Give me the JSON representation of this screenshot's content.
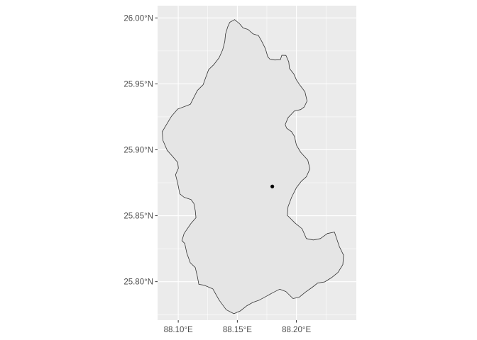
{
  "chart_data": {
    "type": "map",
    "title": "",
    "xlabel": "",
    "ylabel": "",
    "xlim": [
      88.0825,
      88.2507
    ],
    "ylim": [
      25.7708,
      26.0093
    ],
    "panel_background": "#ebebeb",
    "grid_color": "#ffffff",
    "grid": true,
    "x_ticks": [
      {
        "value": 88.1,
        "label": "88.10°E"
      },
      {
        "value": 88.15,
        "label": "88.15°E"
      },
      {
        "value": 88.2,
        "label": "88.20°E"
      }
    ],
    "y_ticks": [
      {
        "value": 25.8,
        "label": "25.80°N"
      },
      {
        "value": 25.85,
        "label": "25.85°N"
      },
      {
        "value": 25.9,
        "label": "25.90°N"
      },
      {
        "value": 25.95,
        "label": "25.95°N"
      },
      {
        "value": 26.0,
        "label": "26.00°N"
      }
    ],
    "region": {
      "fill": "#e5e5e5",
      "stroke": "#333333",
      "boundary": [
        [
          88.1477,
          25.9987
        ],
        [
          88.1519,
          25.9956
        ],
        [
          88.1549,
          25.9924
        ],
        [
          88.159,
          25.9913
        ],
        [
          88.1632,
          25.988
        ],
        [
          88.1679,
          25.9866
        ],
        [
          88.1708,
          25.982
        ],
        [
          88.1738,
          25.9766
        ],
        [
          88.1757,
          25.9707
        ],
        [
          88.1775,
          25.9688
        ],
        [
          88.1816,
          25.9681
        ],
        [
          88.1864,
          25.9683
        ],
        [
          88.1876,
          25.9717
        ],
        [
          88.1911,
          25.9716
        ],
        [
          88.1935,
          25.9667
        ],
        [
          88.1941,
          25.9617
        ],
        [
          88.1977,
          25.9576
        ],
        [
          88.2,
          25.953
        ],
        [
          88.203,
          25.949
        ],
        [
          88.2072,
          25.944
        ],
        [
          88.209,
          25.937
        ],
        [
          88.2066,
          25.9325
        ],
        [
          88.2036,
          25.9305
        ],
        [
          88.1983,
          25.9295
        ],
        [
          88.1929,
          25.9243
        ],
        [
          88.1905,
          25.9191
        ],
        [
          88.1917,
          25.9164
        ],
        [
          88.1959,
          25.9137
        ],
        [
          88.1983,
          25.9102
        ],
        [
          88.2,
          25.9036
        ],
        [
          88.2036,
          25.8981
        ],
        [
          88.2096,
          25.8922
        ],
        [
          88.2114,
          25.8856
        ],
        [
          88.2084,
          25.8795
        ],
        [
          88.2042,
          25.8762
        ],
        [
          88.2,
          25.8713
        ],
        [
          88.1959,
          25.864
        ],
        [
          88.1929,
          25.8568
        ],
        [
          88.1923,
          25.8503
        ],
        [
          88.1988,
          25.8445
        ],
        [
          88.2048,
          25.8401
        ],
        [
          88.2084,
          25.8327
        ],
        [
          88.2143,
          25.8316
        ],
        [
          88.2203,
          25.8327
        ],
        [
          88.2262,
          25.8365
        ],
        [
          88.2322,
          25.8376
        ],
        [
          88.2363,
          25.8267
        ],
        [
          88.2399,
          25.8201
        ],
        [
          88.2393,
          25.8129
        ],
        [
          88.2352,
          25.807
        ],
        [
          88.2298,
          25.8031
        ],
        [
          88.2239,
          25.7998
        ],
        [
          88.2179,
          25.7989
        ],
        [
          88.2131,
          25.7955
        ],
        [
          88.2078,
          25.7922
        ],
        [
          88.2024,
          25.7882
        ],
        [
          88.1971,
          25.7872
        ],
        [
          88.1911,
          25.7925
        ],
        [
          88.1858,
          25.7943
        ],
        [
          88.1799,
          25.7916
        ],
        [
          88.1745,
          25.7889
        ],
        [
          88.1685,
          25.786
        ],
        [
          88.1632,
          25.7843
        ],
        [
          88.1578,
          25.7816
        ],
        [
          88.1525,
          25.7778
        ],
        [
          88.1471,
          25.7757
        ],
        [
          88.1406,
          25.7787
        ],
        [
          88.1346,
          25.786
        ],
        [
          88.1293,
          25.7945
        ],
        [
          88.1221,
          25.7973
        ],
        [
          88.1174,
          25.798
        ],
        [
          88.1162,
          25.8038
        ],
        [
          88.1144,
          25.8107
        ],
        [
          88.1102,
          25.8143
        ],
        [
          88.1072,
          25.8218
        ],
        [
          88.1055,
          25.8289
        ],
        [
          88.1031,
          25.8311
        ],
        [
          88.1049,
          25.8365
        ],
        [
          88.1108,
          25.8442
        ],
        [
          88.115,
          25.8485
        ],
        [
          88.1144,
          25.8538
        ],
        [
          88.1132,
          25.8593
        ],
        [
          88.1108,
          25.8622
        ],
        [
          88.1049,
          25.864
        ],
        [
          88.1013,
          25.8666
        ],
        [
          88.0995,
          25.8748
        ],
        [
          88.0977,
          25.8811
        ],
        [
          88.1001,
          25.886
        ],
        [
          88.0995,
          25.8905
        ],
        [
          88.0953,
          25.8949
        ],
        [
          88.0906,
          25.8996
        ],
        [
          88.087,
          25.9072
        ],
        [
          88.0864,
          25.9137
        ],
        [
          88.09,
          25.9191
        ],
        [
          88.0942,
          25.9254
        ],
        [
          88.0995,
          25.9309
        ],
        [
          88.106,
          25.933
        ],
        [
          88.1102,
          25.9345
        ],
        [
          88.1132,
          25.9398
        ],
        [
          88.1162,
          25.945
        ],
        [
          88.121,
          25.9493
        ],
        [
          88.1233,
          25.955
        ],
        [
          88.1257,
          25.9608
        ],
        [
          88.1299,
          25.9644
        ],
        [
          88.1346,
          25.9698
        ],
        [
          88.1376,
          25.9759
        ],
        [
          88.1394,
          25.9822
        ],
        [
          88.14,
          25.9877
        ],
        [
          88.1418,
          25.9931
        ],
        [
          88.1436,
          25.9967
        ],
        [
          88.1477,
          25.9987
        ]
      ]
    },
    "points": [
      {
        "lon": 88.1796,
        "lat": 25.8722,
        "color": "#000000"
      }
    ]
  }
}
